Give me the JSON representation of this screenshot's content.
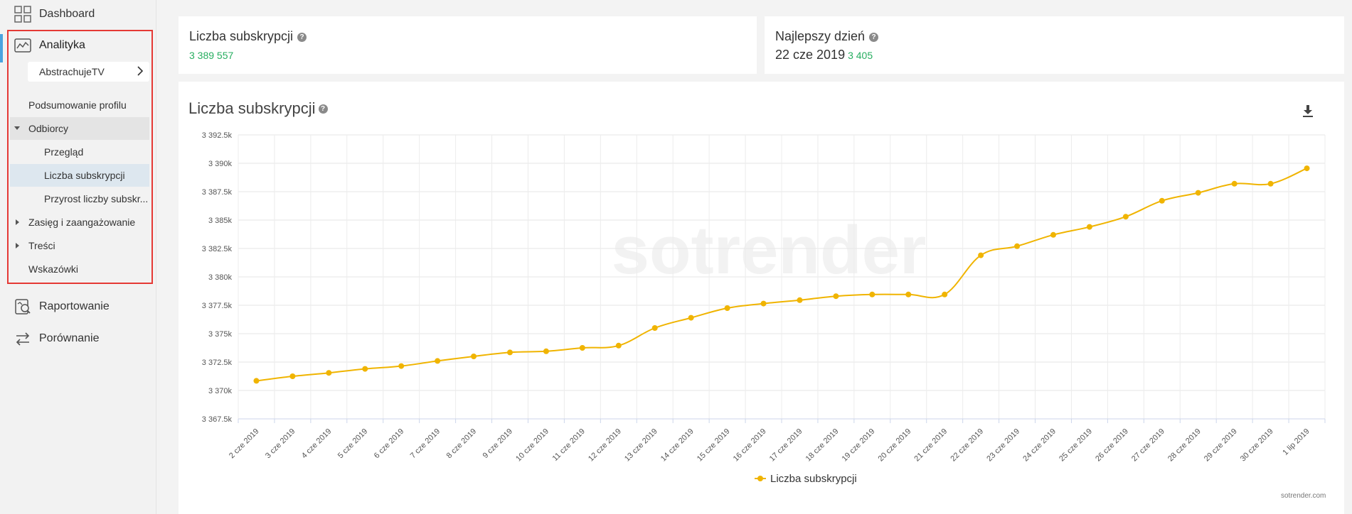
{
  "sidebar": {
    "dashboard": "Dashboard",
    "analityka": "Analityka",
    "profile": "AbstrachujeTV",
    "items": {
      "podsumowanie": "Podsumowanie profilu",
      "odbiorcy": "Odbiorcy",
      "przeglad": "Przegląd",
      "liczba": "Liczba subskrypcji",
      "przyrost": "Przyrost liczby subskr...",
      "zasieg": "Zasięg i zaangażowanie",
      "tresci": "Treści",
      "wskazowki": "Wskazówki"
    },
    "raportowanie": "Raportowanie",
    "porownanie": "Porównanie"
  },
  "cards": {
    "subs_title": "Liczba subskrypcji",
    "subs_value": "3 389 557",
    "best_title": "Najlepszy dzień",
    "best_date": "22 cze 2019",
    "best_value": "3 405"
  },
  "chart_panel": {
    "title": "Liczba subskrypcji",
    "watermark": "sotrender",
    "footer": "sotrender.com"
  },
  "colors": {
    "series": "#f0b400",
    "positive": "#27ae60",
    "highlight_border": "#e53935",
    "active_marker": "#4aa3df"
  },
  "chart_data": {
    "type": "line",
    "title": "Liczba subskrypcji",
    "x": [
      "2 cze 2019",
      "3 cze 2019",
      "4 cze 2019",
      "5 cze 2019",
      "6 cze 2019",
      "7 cze 2019",
      "8 cze 2019",
      "9 cze 2019",
      "10 cze 2019",
      "11 cze 2019",
      "12 cze 2019",
      "13 cze 2019",
      "14 cze 2019",
      "15 cze 2019",
      "16 cze 2019",
      "17 cze 2019",
      "18 cze 2019",
      "19 cze 2019",
      "20 cze 2019",
      "21 cze 2019",
      "22 cze 2019",
      "23 cze 2019",
      "24 cze 2019",
      "25 cze 2019",
      "26 cze 2019",
      "27 cze 2019",
      "28 cze 2019",
      "29 cze 2019",
      "30 cze 2019",
      "1 lip 2019"
    ],
    "series": [
      {
        "name": "Liczba subskrypcji",
        "values": [
          3370850,
          3371250,
          3371550,
          3371900,
          3372150,
          3372600,
          3373000,
          3373350,
          3373450,
          3373750,
          3373950,
          3375500,
          3376400,
          3377250,
          3377650,
          3377950,
          3378300,
          3378450,
          3378450,
          3378450,
          3381900,
          3382700,
          3383700,
          3384400,
          3385300,
          3386700,
          3387400,
          3388200,
          3388200,
          3389557
        ]
      }
    ],
    "ylim": [
      3367500,
      3392500
    ],
    "yticks": [
      "3 367.5k",
      "3 370k",
      "3 372.5k",
      "3 375k",
      "3 377.5k",
      "3 380k",
      "3 382.5k",
      "3 385k",
      "3 387.5k",
      "3 390k",
      "3 392.5k"
    ],
    "legend": "bottom-center",
    "grid": true
  }
}
